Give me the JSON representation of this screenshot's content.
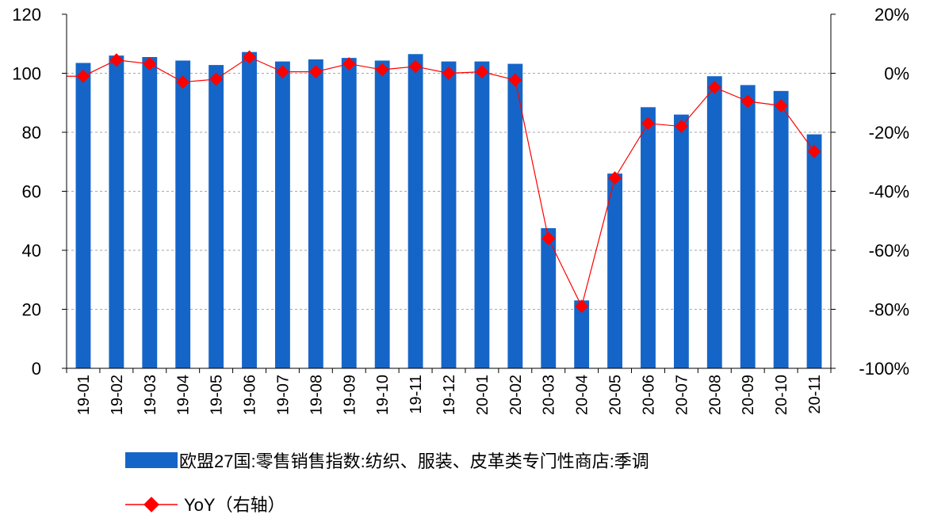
{
  "chart_data": {
    "type": "bar",
    "categories": [
      "19-01",
      "19-02",
      "19-03",
      "19-04",
      "19-05",
      "19-06",
      "19-07",
      "19-08",
      "19-09",
      "19-10",
      "19-11",
      "19-12",
      "20-01",
      "20-02",
      "20-03",
      "20-04",
      "20-05",
      "20-06",
      "20-07",
      "20-08",
      "20-09",
      "20-10",
      "20-11"
    ],
    "series": [
      {
        "name": "欧盟27国:零售销售指数:纺织、服装、皮革类专门性商店:季调",
        "type": "bar",
        "axis": "left",
        "color": "#1565C8",
        "values": [
          103.5,
          106,
          105.5,
          104.3,
          102.8,
          107.2,
          104,
          104.7,
          105.2,
          104.3,
          106.5,
          104,
          104,
          103.2,
          47.5,
          23,
          66,
          88.5,
          86,
          99,
          96,
          94,
          79.3
        ]
      },
      {
        "name": "YoY（右轴）",
        "type": "line",
        "axis": "right",
        "color": "#FF0000",
        "values": [
          -1,
          4.5,
          3.2,
          -3,
          -2,
          5.5,
          0.5,
          0.5,
          3.2,
          1.2,
          2.3,
          0,
          0.5,
          -2.3,
          -56,
          -79,
          -35.5,
          -17,
          -18,
          -4.8,
          -9.5,
          -11,
          -26.5
        ]
      }
    ],
    "yleft": {
      "min": 0,
      "max": 120,
      "ticks": [
        "0",
        "20",
        "40",
        "60",
        "80",
        "100",
        "120"
      ]
    },
    "yright": {
      "min": -100,
      "max": 20,
      "ticks": [
        "-100%",
        "-80%",
        "-60%",
        "-40%",
        "-20%",
        "0%",
        "20%"
      ]
    },
    "grid": true,
    "legend_position": "bottom"
  }
}
